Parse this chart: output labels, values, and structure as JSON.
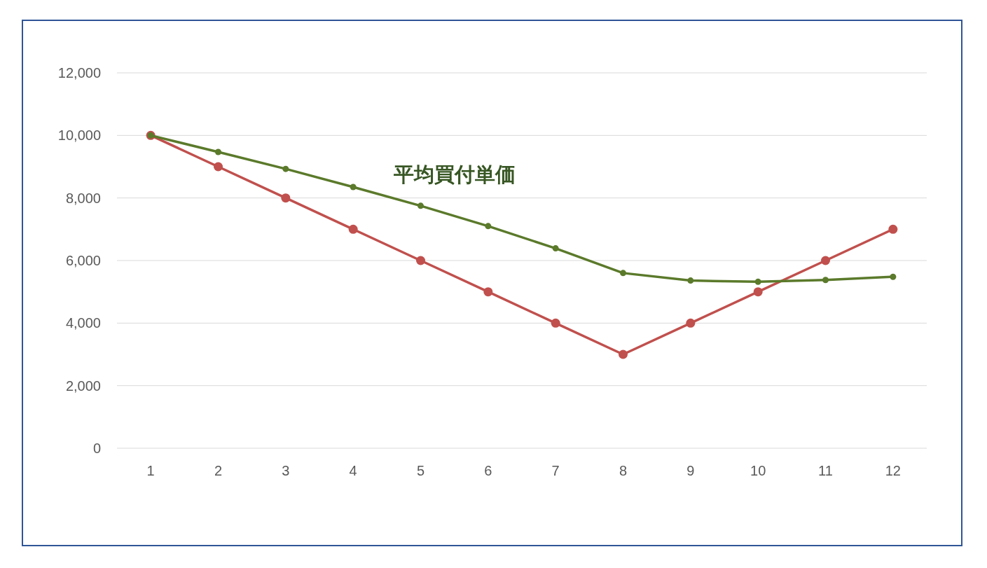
{
  "chart_data": {
    "type": "line",
    "x": [
      1,
      2,
      3,
      4,
      5,
      6,
      7,
      8,
      9,
      10,
      11,
      12
    ],
    "xlim": [
      0.5,
      12.5
    ],
    "xticks": [
      1,
      2,
      3,
      4,
      5,
      6,
      7,
      8,
      9,
      10,
      11,
      12
    ],
    "series": [
      {
        "color": "#c0504d",
        "values": [
          10000,
          9000,
          8000,
          7000,
          6000,
          5000,
          4000,
          3000,
          4000,
          5000,
          6000,
          7000
        ]
      },
      {
        "name": "平均買付単価",
        "color": "#5b7a2b",
        "values": [
          10000,
          9470,
          8930,
          8350,
          7750,
          7100,
          6390,
          5600,
          5360,
          5320,
          5380,
          5480
        ]
      }
    ],
    "ylim": [
      0,
      12000
    ],
    "yticks": [
      {
        "value": 0,
        "label": "0"
      },
      {
        "value": 2000,
        "label": "2,000"
      },
      {
        "value": 4000,
        "label": "4,000"
      },
      {
        "value": 6000,
        "label": "6,000"
      },
      {
        "value": 8000,
        "label": "8,000"
      },
      {
        "value": 10000,
        "label": "10,000"
      },
      {
        "value": 12000,
        "label": "12,000"
      }
    ],
    "grid": "y",
    "marker": "circle",
    "line_style": "solid",
    "legend": false
  }
}
